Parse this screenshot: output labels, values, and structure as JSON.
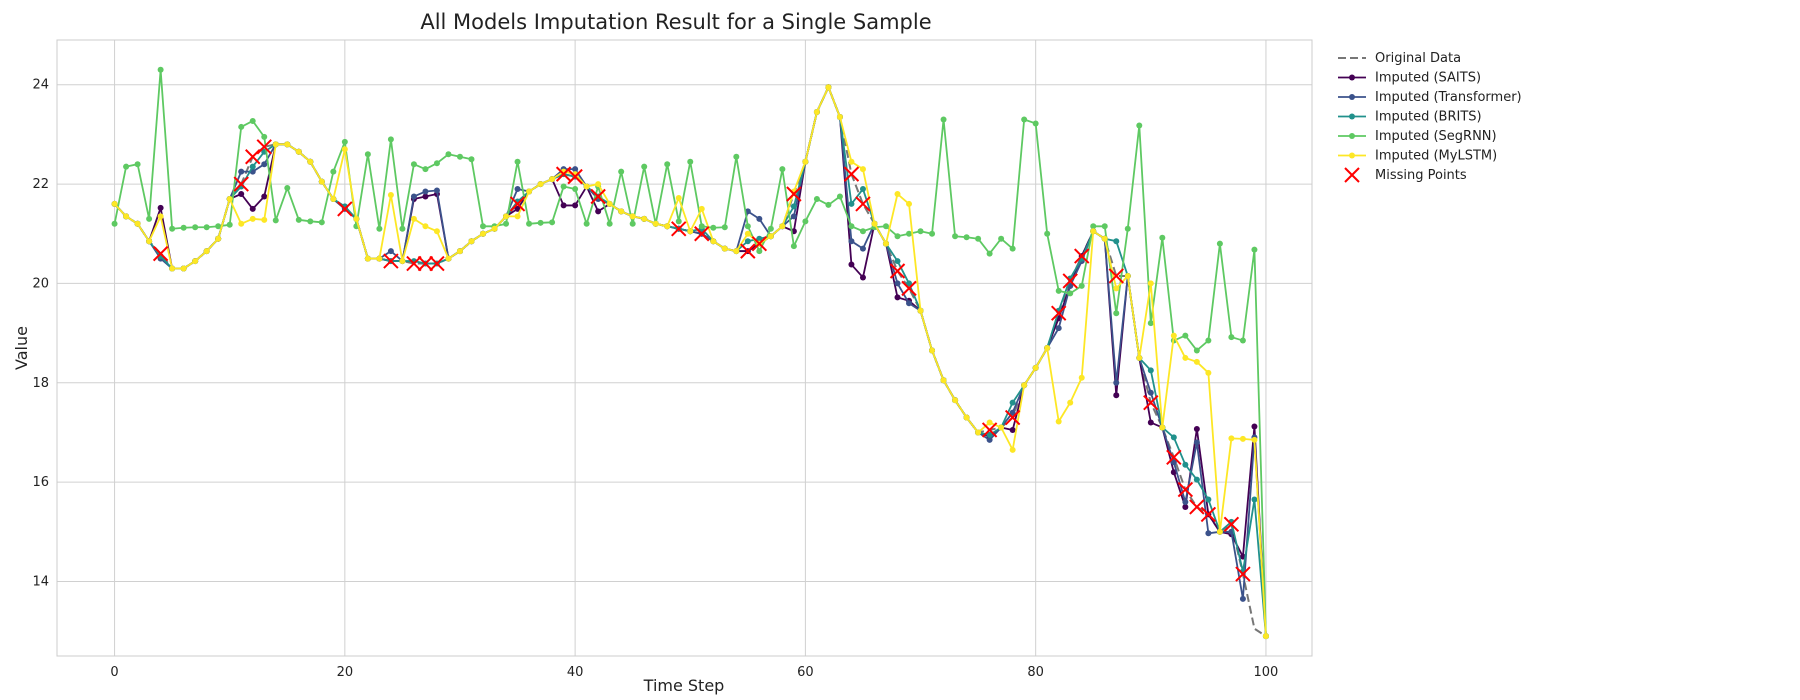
{
  "chart_data": {
    "type": "line",
    "title": "All Models Imputation Result for a Single Sample",
    "xlabel": "Time Step",
    "ylabel": "Value",
    "xlim": [
      -5,
      104
    ],
    "ylim": [
      12.5,
      24.9
    ],
    "xticks": [
      0,
      20,
      40,
      60,
      80,
      100
    ],
    "yticks": [
      14,
      16,
      18,
      20,
      22,
      24
    ],
    "grid": true,
    "legend_placement": "outside-top-right",
    "original": {
      "name": "Original Data",
      "color": "#777777",
      "values": [
        21.6,
        21.35,
        21.2,
        20.85,
        20.6,
        20.3,
        20.3,
        20.45,
        20.65,
        20.9,
        21.7,
        22.0,
        22.55,
        22.75,
        22.8,
        22.8,
        22.65,
        22.45,
        22.05,
        21.7,
        21.5,
        21.3,
        20.5,
        20.5,
        20.45,
        20.45,
        20.4,
        20.4,
        20.4,
        20.5,
        20.65,
        20.85,
        21.0,
        21.1,
        21.35,
        21.6,
        21.85,
        22.0,
        22.1,
        22.2,
        22.15,
        21.95,
        21.75,
        21.6,
        21.45,
        21.35,
        21.3,
        21.2,
        21.15,
        21.1,
        21.05,
        21.0,
        20.85,
        20.7,
        20.65,
        20.65,
        20.8,
        20.95,
        21.15,
        21.8,
        22.45,
        23.45,
        23.95,
        23.35,
        22.2,
        21.6,
        21.2,
        20.8,
        20.25,
        19.9,
        19.45,
        18.65,
        18.05,
        17.65,
        17.3,
        17.0,
        17.05,
        17.1,
        17.3,
        17.95,
        18.3,
        18.7,
        19.4,
        20.05,
        20.55,
        21.05,
        20.9,
        20.15,
        20.15,
        18.5,
        17.6,
        17.1,
        16.5,
        15.85,
        15.5,
        15.35,
        15.0,
        15.15,
        14.15,
        13.05,
        12.9
      ]
    },
    "series": [
      {
        "name": "Imputed (SAITS)",
        "color": "#440154",
        "values": [
          21.6,
          21.35,
          21.2,
          20.85,
          21.52,
          20.3,
          20.3,
          20.45,
          20.65,
          20.9,
          21.7,
          21.8,
          21.5,
          21.75,
          22.8,
          22.8,
          22.65,
          22.45,
          22.05,
          21.7,
          21.52,
          21.3,
          20.5,
          20.5,
          20.45,
          20.45,
          21.7,
          21.75,
          21.8,
          20.5,
          20.65,
          20.85,
          21.0,
          21.1,
          21.35,
          21.5,
          21.85,
          22.0,
          22.1,
          21.57,
          21.57,
          21.95,
          21.45,
          21.6,
          21.45,
          21.35,
          21.3,
          21.2,
          21.15,
          21.1,
          21.05,
          21.0,
          20.85,
          20.7,
          20.65,
          20.65,
          20.8,
          20.95,
          21.15,
          21.05,
          22.45,
          23.45,
          23.95,
          23.35,
          20.38,
          20.12,
          21.2,
          20.8,
          19.72,
          19.65,
          19.45,
          18.65,
          18.05,
          17.65,
          17.3,
          17.0,
          16.92,
          17.1,
          17.05,
          17.95,
          18.3,
          18.7,
          19.3,
          19.95,
          20.55,
          21.05,
          20.9,
          17.75,
          20.15,
          18.5,
          17.2,
          17.1,
          16.2,
          15.5,
          17.07,
          15.35,
          15.0,
          14.95,
          14.5,
          17.12,
          12.9
        ]
      },
      {
        "name": "Imputed (Transformer)",
        "color": "#3b528b",
        "values": [
          21.6,
          21.35,
          21.2,
          20.85,
          20.5,
          20.3,
          20.3,
          20.45,
          20.65,
          20.9,
          21.7,
          22.25,
          22.25,
          22.4,
          22.8,
          22.8,
          22.65,
          22.45,
          22.05,
          21.7,
          21.5,
          21.3,
          20.5,
          20.5,
          20.65,
          20.45,
          21.75,
          21.85,
          21.87,
          20.5,
          20.65,
          20.85,
          21.0,
          21.1,
          21.35,
          21.9,
          21.85,
          22.0,
          22.1,
          22.3,
          22.3,
          21.95,
          21.7,
          21.6,
          21.45,
          21.35,
          21.3,
          21.2,
          21.15,
          21.1,
          21.05,
          21.0,
          20.85,
          20.7,
          20.65,
          21.45,
          21.3,
          20.95,
          21.15,
          21.35,
          22.45,
          23.45,
          23.95,
          23.35,
          20.85,
          20.7,
          21.2,
          20.8,
          20.0,
          19.6,
          19.45,
          18.65,
          18.05,
          17.65,
          17.3,
          17.0,
          16.85,
          17.1,
          17.4,
          17.95,
          18.3,
          18.7,
          19.1,
          19.95,
          20.45,
          21.05,
          20.9,
          18.0,
          20.15,
          18.5,
          17.8,
          17.1,
          16.4,
          15.6,
          16.8,
          14.97,
          15.0,
          15.0,
          13.65,
          16.9,
          12.9
        ]
      },
      {
        "name": "Imputed (BRITS)",
        "color": "#21918c",
        "values": [
          21.6,
          21.35,
          21.2,
          20.85,
          20.55,
          20.3,
          20.3,
          20.45,
          20.65,
          20.9,
          21.7,
          21.95,
          22.35,
          22.65,
          22.8,
          22.8,
          22.65,
          22.45,
          22.05,
          21.7,
          21.55,
          21.3,
          20.5,
          20.5,
          20.45,
          20.45,
          20.45,
          20.4,
          20.4,
          20.5,
          20.65,
          20.85,
          21.0,
          21.1,
          21.35,
          21.65,
          21.85,
          22.0,
          22.1,
          22.2,
          22.15,
          21.95,
          21.75,
          21.6,
          21.45,
          21.35,
          21.3,
          21.2,
          21.15,
          21.1,
          21.05,
          21.1,
          20.85,
          20.7,
          20.65,
          20.85,
          20.9,
          20.95,
          21.15,
          21.55,
          22.45,
          23.45,
          23.95,
          23.35,
          21.6,
          21.9,
          21.2,
          20.8,
          20.45,
          20.0,
          19.45,
          18.65,
          18.05,
          17.65,
          17.3,
          17.0,
          16.95,
          17.1,
          17.6,
          17.95,
          18.3,
          18.7,
          19.45,
          20.1,
          20.5,
          21.05,
          20.9,
          20.85,
          20.15,
          18.5,
          18.25,
          17.1,
          16.9,
          16.35,
          16.05,
          15.65,
          15.0,
          15.2,
          14.2,
          15.65,
          12.9
        ]
      },
      {
        "name": "Imputed (SegRNN)",
        "color": "#5ec962",
        "values": [
          21.2,
          22.35,
          22.4,
          21.3,
          24.3,
          21.1,
          21.12,
          21.13,
          21.13,
          21.15,
          21.18,
          23.15,
          23.27,
          22.95,
          21.27,
          21.92,
          21.28,
          21.25,
          21.23,
          22.25,
          22.85,
          21.15,
          22.6,
          21.1,
          22.9,
          21.1,
          22.4,
          22.3,
          22.42,
          22.6,
          22.55,
          22.5,
          21.15,
          21.15,
          21.2,
          22.45,
          21.2,
          21.22,
          21.23,
          21.95,
          21.9,
          21.2,
          21.95,
          21.2,
          22.25,
          21.2,
          22.35,
          21.2,
          22.4,
          21.25,
          22.45,
          21.15,
          21.12,
          21.13,
          22.55,
          21.15,
          20.65,
          21.1,
          22.3,
          20.75,
          21.25,
          21.7,
          21.58,
          21.75,
          21.15,
          21.05,
          21.13,
          21.15,
          20.95,
          21.0,
          21.05,
          21.0,
          23.3,
          20.95,
          20.93,
          20.9,
          20.6,
          20.9,
          20.7,
          23.3,
          23.22,
          21.0,
          19.85,
          19.8,
          19.95,
          21.15,
          21.15,
          19.4,
          21.1,
          23.18,
          19.2,
          20.92,
          18.85,
          18.95,
          18.65,
          18.85,
          20.8,
          18.92,
          18.85,
          20.68,
          12.9
        ]
      },
      {
        "name": "Imputed (MyLSTM)",
        "color": "#fde725",
        "values": [
          21.6,
          21.35,
          21.2,
          20.85,
          21.35,
          20.3,
          20.3,
          20.45,
          20.65,
          20.9,
          21.7,
          21.2,
          21.3,
          21.28,
          22.8,
          22.8,
          22.65,
          22.45,
          22.05,
          21.7,
          22.7,
          21.3,
          20.5,
          20.5,
          21.78,
          20.45,
          21.3,
          21.15,
          21.05,
          20.5,
          20.65,
          20.85,
          21.0,
          21.1,
          21.35,
          21.35,
          21.85,
          22.0,
          22.1,
          22.25,
          22.2,
          21.95,
          22.0,
          21.6,
          21.45,
          21.35,
          21.3,
          21.2,
          21.15,
          21.72,
          21.05,
          21.5,
          20.85,
          20.7,
          20.65,
          21.0,
          20.8,
          20.95,
          21.15,
          21.85,
          22.45,
          23.45,
          23.95,
          23.35,
          22.45,
          22.3,
          21.2,
          20.8,
          21.8,
          21.6,
          19.45,
          18.65,
          18.05,
          17.65,
          17.3,
          17.0,
          17.2,
          17.1,
          16.65,
          17.95,
          18.3,
          18.7,
          17.22,
          17.6,
          18.1,
          21.05,
          20.9,
          19.9,
          20.15,
          18.5,
          20.0,
          17.1,
          18.95,
          18.5,
          18.42,
          18.2,
          15.0,
          16.88,
          16.87,
          16.85,
          12.9
        ]
      }
    ],
    "missing": {
      "name": "Missing Points",
      "color": "#ff0000",
      "indices": [
        4,
        11,
        12,
        13,
        20,
        24,
        26,
        27,
        28,
        35,
        39,
        40,
        42,
        49,
        51,
        55,
        56,
        59,
        64,
        65,
        68,
        69,
        76,
        78,
        82,
        83,
        84,
        87,
        90,
        92,
        93,
        94,
        95,
        97,
        98
      ]
    }
  }
}
